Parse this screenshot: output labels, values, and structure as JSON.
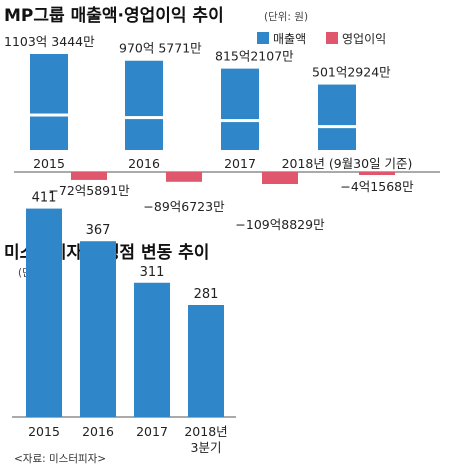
{
  "colors": {
    "revenue": "#2f86c8",
    "profit": "#e0566c",
    "store": "#2f86c8",
    "axis": "#555555",
    "break_line": "#ffffff"
  },
  "chart_data": [
    {
      "type": "bar",
      "title": "MP그룹 매출액·영업이익 추이",
      "unit": "(단위: 원)",
      "categories": [
        "2015",
        "2016",
        "2017",
        "2018년 (9월30일 기준)"
      ],
      "broken_axis": true,
      "series": [
        {
          "name": "매출액",
          "values": [
            110334440000,
            97057710000,
            81521070000,
            50129240000
          ],
          "labels": [
            "1103억 3444만",
            "970억 5771만",
            "815억2107만",
            "501억2924만"
          ]
        },
        {
          "name": "영업이익",
          "values": [
            -7258910000,
            -8967230000,
            -10988290000,
            -415680000
          ],
          "labels": [
            "−72억5891만",
            "−89억6723만",
            "−109억8829만",
            "−4억1568만"
          ]
        }
      ],
      "legend": {
        "placement": "top-right",
        "items": [
          "매출액",
          "영업이익"
        ]
      }
    },
    {
      "type": "bar",
      "title": "미스터피자 가맹점 변동 추이",
      "unit": "(단위: 개)",
      "categories": [
        "2015",
        "2016",
        "2017",
        "2018년 3분기"
      ],
      "values": [
        411,
        367,
        311,
        281
      ],
      "source": "<자료: 미스터피자>"
    }
  ]
}
